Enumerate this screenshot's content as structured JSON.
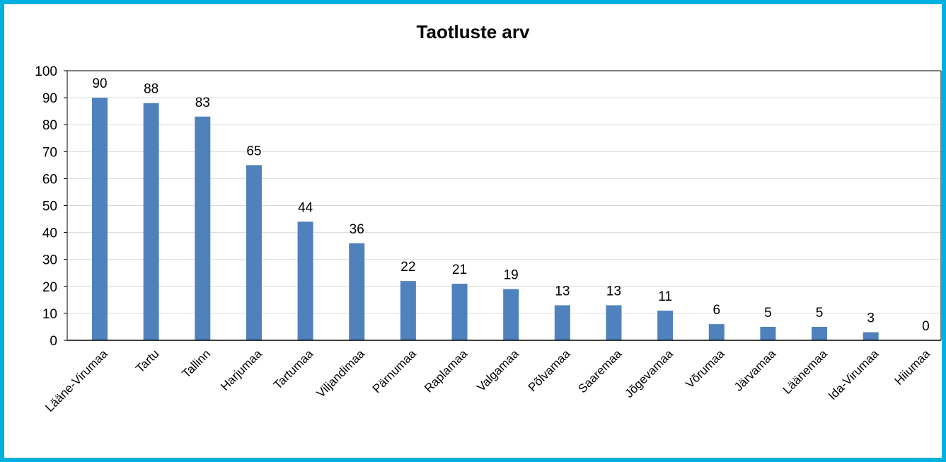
{
  "chart_data": {
    "type": "bar",
    "title": "Taotluste arv",
    "xlabel": "",
    "ylabel": "",
    "ylim": [
      0,
      100
    ],
    "yticks": [
      0,
      10,
      20,
      30,
      40,
      50,
      60,
      70,
      80,
      90,
      100
    ],
    "grid": true,
    "legend": "none",
    "bar_color": "#4f81bd",
    "frame_color": "#00b0e0",
    "categories": [
      "Lääne-Virumaa",
      "Tartu",
      "Tallinn",
      "Harjumaa",
      "Tartumaa",
      "Viljandimaa",
      "Pärnumaa",
      "Raplamaa",
      "Valgamaa",
      "Põlvamaa",
      "Saaremaa",
      "Jõgevamaa",
      "Võrumaa",
      "Järvamaa",
      "Läänemaa",
      "Ida-Virumaa",
      "Hiiumaa"
    ],
    "values": [
      90,
      88,
      83,
      65,
      44,
      36,
      22,
      21,
      19,
      13,
      13,
      11,
      6,
      5,
      5,
      3,
      0
    ]
  }
}
